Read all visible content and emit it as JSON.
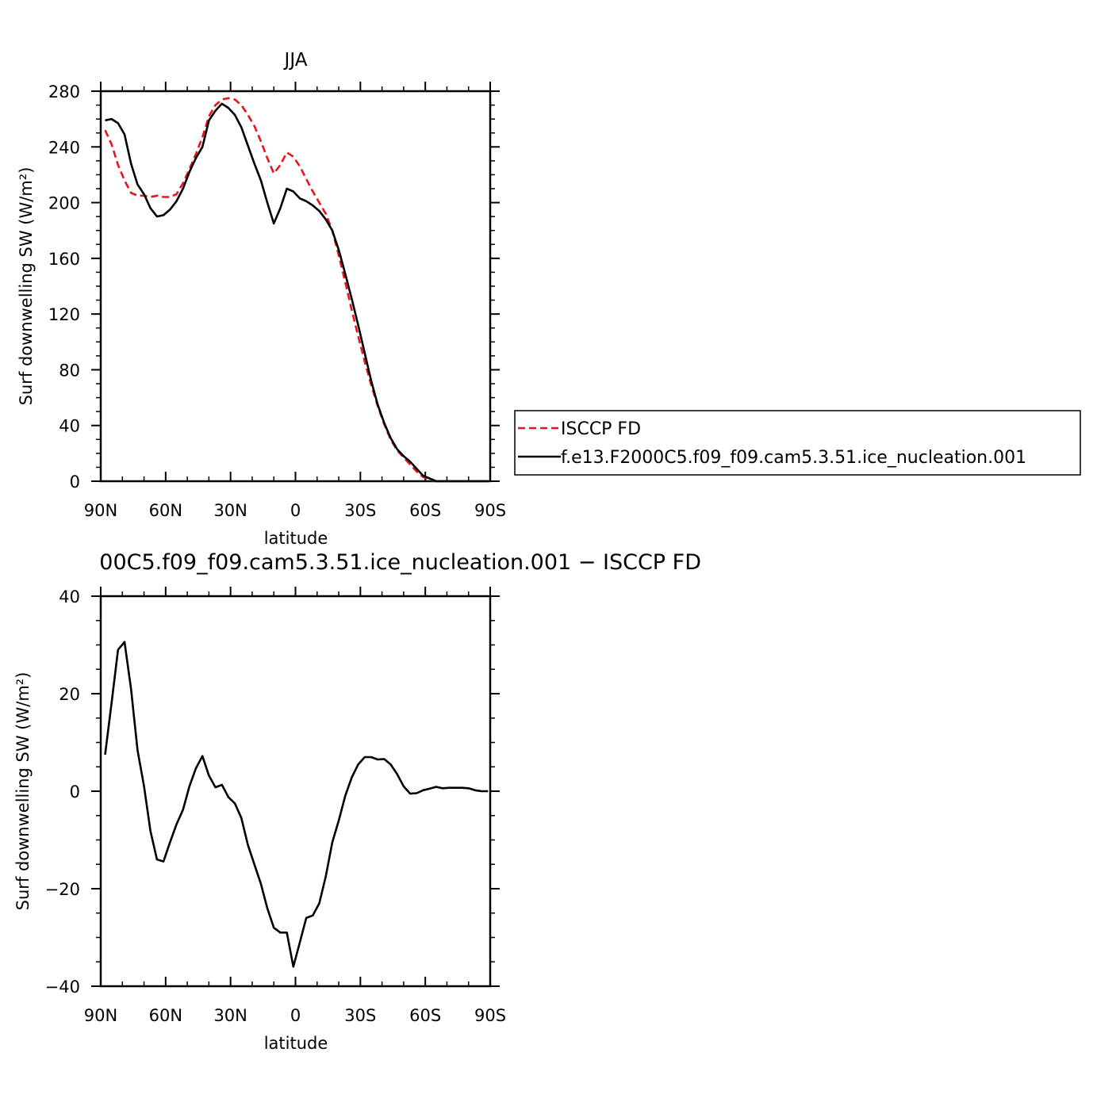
{
  "chart_data": [
    {
      "type": "line",
      "title": "JJA",
      "xlabel": "latitude",
      "ylabel": "Surf downwelling SW (W/m²)",
      "xlim": [
        -90,
        90
      ],
      "ylim": [
        0,
        280
      ],
      "x_ticks": [
        -90,
        -60,
        -30,
        0,
        30,
        60,
        90
      ],
      "x_tick_labels": [
        "90N",
        "60N",
        "30N",
        "0",
        "30S",
        "60S",
        "90S"
      ],
      "y_ticks": [
        0,
        40,
        80,
        120,
        160,
        200,
        240,
        280
      ],
      "y_tick_labels": [
        "0",
        "40",
        "80",
        "120",
        "160",
        "200",
        "240",
        "280"
      ],
      "legend_position": "right",
      "series": [
        {
          "name": "ISCCP FD",
          "color": "#e8141b",
          "dash": "dashed",
          "x": [
            -88,
            -85,
            -82,
            -79,
            -76,
            -73,
            -70,
            -67,
            -64,
            -61,
            -58,
            -55,
            -52,
            -49,
            -46,
            -43,
            -40,
            -37,
            -34,
            -31,
            -28,
            -25,
            -22,
            -19,
            -16,
            -13,
            -10,
            -7,
            -4,
            -1,
            2,
            5,
            8,
            11,
            14,
            17,
            20,
            23,
            26,
            29,
            32,
            35,
            38,
            41,
            44,
            47,
            50,
            53,
            56,
            59,
            62,
            65,
            68,
            71,
            74,
            77,
            80,
            83,
            86,
            89
          ],
          "y": [
            252,
            242,
            227,
            216,
            207,
            205,
            205,
            204,
            205,
            204,
            204,
            206,
            214,
            224,
            235,
            247,
            262,
            270,
            274,
            275,
            274,
            270,
            263,
            255,
            244,
            232,
            221,
            227,
            236,
            233,
            226,
            217,
            208,
            200,
            192,
            180,
            162,
            143,
            123,
            104,
            86,
            69,
            54,
            41,
            30,
            22,
            17,
            12,
            7,
            3,
            1,
            0,
            0,
            0,
            0,
            0,
            0,
            0,
            0,
            0
          ]
        },
        {
          "name": "f.e13.F2000C5.f09_f09.cam5.3.51.ice_nucleation.001",
          "color": "#000000",
          "dash": "solid",
          "x": [
            -88,
            -85,
            -82,
            -79,
            -76,
            -73,
            -70,
            -67,
            -64,
            -61,
            -58,
            -55,
            -52,
            -49,
            -46,
            -43,
            -40,
            -37,
            -34,
            -31,
            -28,
            -25,
            -22,
            -19,
            -16,
            -13,
            -10,
            -7,
            -4,
            -1,
            2,
            5,
            8,
            11,
            14,
            17,
            20,
            23,
            26,
            29,
            32,
            35,
            38,
            41,
            44,
            47,
            50,
            53,
            56,
            59,
            62,
            65,
            68,
            71,
            74,
            77,
            80,
            83,
            86,
            89
          ],
          "y": [
            259,
            260,
            257,
            249,
            228,
            213,
            206,
            196,
            190,
            191,
            195,
            201,
            210,
            222,
            232,
            240,
            259,
            266,
            271,
            268,
            263,
            254,
            241,
            228,
            216,
            200,
            185,
            196,
            210,
            208,
            203,
            201,
            198,
            194,
            188,
            180,
            166,
            149,
            131,
            112,
            92,
            72,
            55,
            42,
            31,
            23,
            18,
            14,
            9,
            4,
            2,
            0,
            0,
            0,
            0,
            0,
            0,
            0,
            0,
            0
          ]
        }
      ]
    },
    {
      "type": "line",
      "title": "00C5.f09_f09.cam5.3.51.ice_nucleation.001 − ISCCP FD",
      "xlabel": "latitude",
      "ylabel": "Surf downwelling SW (W/m²)",
      "xlim": [
        -90,
        90
      ],
      "ylim": [
        -40,
        40
      ],
      "x_ticks": [
        -90,
        -60,
        -30,
        0,
        30,
        60,
        90
      ],
      "x_tick_labels": [
        "90N",
        "60N",
        "30N",
        "0",
        "30S",
        "60S",
        "90S"
      ],
      "y_ticks": [
        -40,
        -20,
        0,
        20,
        40
      ],
      "y_tick_labels": [
        "−40",
        "−20",
        "0",
        "20",
        "40"
      ],
      "series": [
        {
          "color": "#000000",
          "dash": "solid",
          "x": [
            -88,
            -85,
            -82,
            -79,
            -76,
            -73,
            -70,
            -67,
            -64,
            -61,
            -58,
            -55,
            -52,
            -49,
            -46,
            -43,
            -40,
            -37,
            -34,
            -31,
            -28,
            -25,
            -22,
            -19,
            -16,
            -13,
            -10,
            -7,
            -4,
            -1,
            2,
            5,
            8,
            11,
            14,
            17,
            20,
            23,
            26,
            29,
            32,
            35,
            38,
            41,
            44,
            47,
            50,
            53,
            56,
            59,
            62,
            65,
            68,
            71,
            74,
            77,
            80,
            83,
            86,
            89
          ],
          "y": [
            7.5,
            18,
            29,
            30.6,
            21,
            8.4,
            1,
            -8.2,
            -14,
            -14.4,
            -10.5,
            -6.8,
            -3.8,
            1,
            4.7,
            7.2,
            3.2,
            0.8,
            1.3,
            -1.2,
            -2.5,
            -5.5,
            -11,
            -15,
            -19,
            -24,
            -28,
            -29,
            -29,
            -36,
            -31,
            -26,
            -25.5,
            -23,
            -17.5,
            -10.5,
            -6,
            -1,
            2.8,
            5.5,
            7,
            7,
            6.5,
            6.6,
            5.5,
            3.5,
            1,
            -0.5,
            -0.4,
            0.2,
            0.5,
            0.9,
            0.6,
            0.7,
            0.7,
            0.7,
            0.6,
            0.2,
            0,
            0
          ]
        }
      ]
    }
  ]
}
